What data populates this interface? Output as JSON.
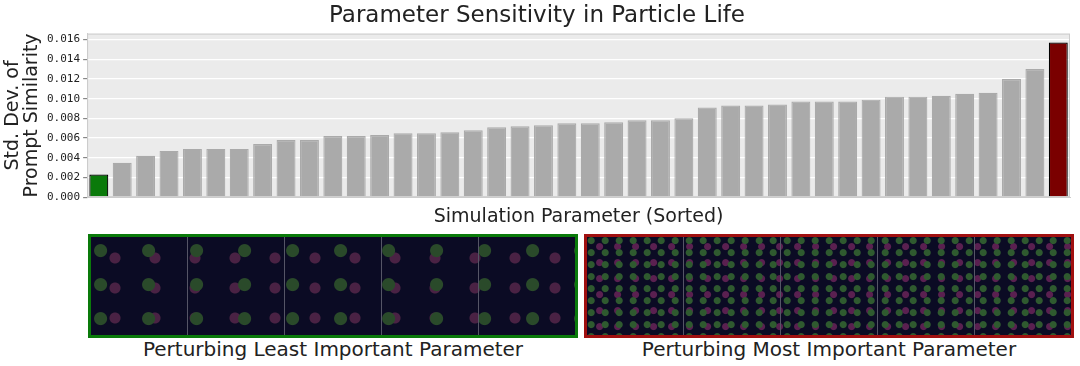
{
  "chart_data": {
    "type": "bar",
    "title": "Parameter Sensitivity in Particle Life",
    "x_label": "Simulation Parameter (Sorted)",
    "y_label": "Std. Dev. of\nPrompt Similarity",
    "categories": [
      null,
      null,
      null,
      null,
      null,
      null,
      null,
      null,
      null,
      null,
      null,
      null,
      null,
      null,
      null,
      null,
      null,
      null,
      null,
      null,
      null,
      null,
      null,
      null,
      null,
      null,
      null,
      null,
      null,
      null,
      null,
      null,
      null,
      null,
      null,
      null,
      null,
      null,
      null,
      null,
      null,
      null
    ],
    "values": [
      0.0023,
      0.0035,
      0.0042,
      0.0047,
      0.0049,
      0.0049,
      0.0049,
      0.0054,
      0.0058,
      0.0058,
      0.0062,
      0.0062,
      0.0063,
      0.0065,
      0.0065,
      0.0066,
      0.0068,
      0.0071,
      0.0072,
      0.0073,
      0.0075,
      0.0075,
      0.0076,
      0.0078,
      0.0078,
      0.008,
      0.0091,
      0.0093,
      0.0093,
      0.0094,
      0.0097,
      0.0097,
      0.0097,
      0.0099,
      0.0102,
      0.0102,
      0.0103,
      0.0105,
      0.0106,
      0.012,
      0.013,
      0.0157
    ],
    "colors": [
      "#0a7a0a",
      "#aaaaaa",
      "#aaaaaa",
      "#aaaaaa",
      "#aaaaaa",
      "#aaaaaa",
      "#aaaaaa",
      "#aaaaaa",
      "#aaaaaa",
      "#aaaaaa",
      "#aaaaaa",
      "#aaaaaa",
      "#aaaaaa",
      "#aaaaaa",
      "#aaaaaa",
      "#aaaaaa",
      "#aaaaaa",
      "#aaaaaa",
      "#aaaaaa",
      "#aaaaaa",
      "#aaaaaa",
      "#aaaaaa",
      "#aaaaaa",
      "#aaaaaa",
      "#aaaaaa",
      "#aaaaaa",
      "#aaaaaa",
      "#aaaaaa",
      "#aaaaaa",
      "#aaaaaa",
      "#aaaaaa",
      "#aaaaaa",
      "#aaaaaa",
      "#aaaaaa",
      "#aaaaaa",
      "#aaaaaa",
      "#aaaaaa",
      "#aaaaaa",
      "#aaaaaa",
      "#aaaaaa",
      "#aaaaaa",
      "#7a0000"
    ],
    "ylim": [
      0,
      0.0166
    ],
    "yticks": [
      {
        "value": 0,
        "label": "0.000"
      },
      {
        "value": 0.002,
        "label": "0.002"
      },
      {
        "value": 0.004,
        "label": "0.004"
      },
      {
        "value": 0.006,
        "label": "0.006"
      },
      {
        "value": 0.008,
        "label": "0.008"
      },
      {
        "value": 0.01,
        "label": "0.010"
      },
      {
        "value": 0.012,
        "label": "0.012"
      },
      {
        "value": 0.014,
        "label": "0.014"
      },
      {
        "value": 0.016,
        "label": "0.016"
      }
    ],
    "grid": true,
    "tick_labels": "y"
  },
  "images": [
    {
      "caption": "Perturbing Least Important Parameter",
      "border_color": "#0a7a0a"
    },
    {
      "caption": "Perturbing Most Important Parameter",
      "border_color": "#a01010"
    }
  ]
}
